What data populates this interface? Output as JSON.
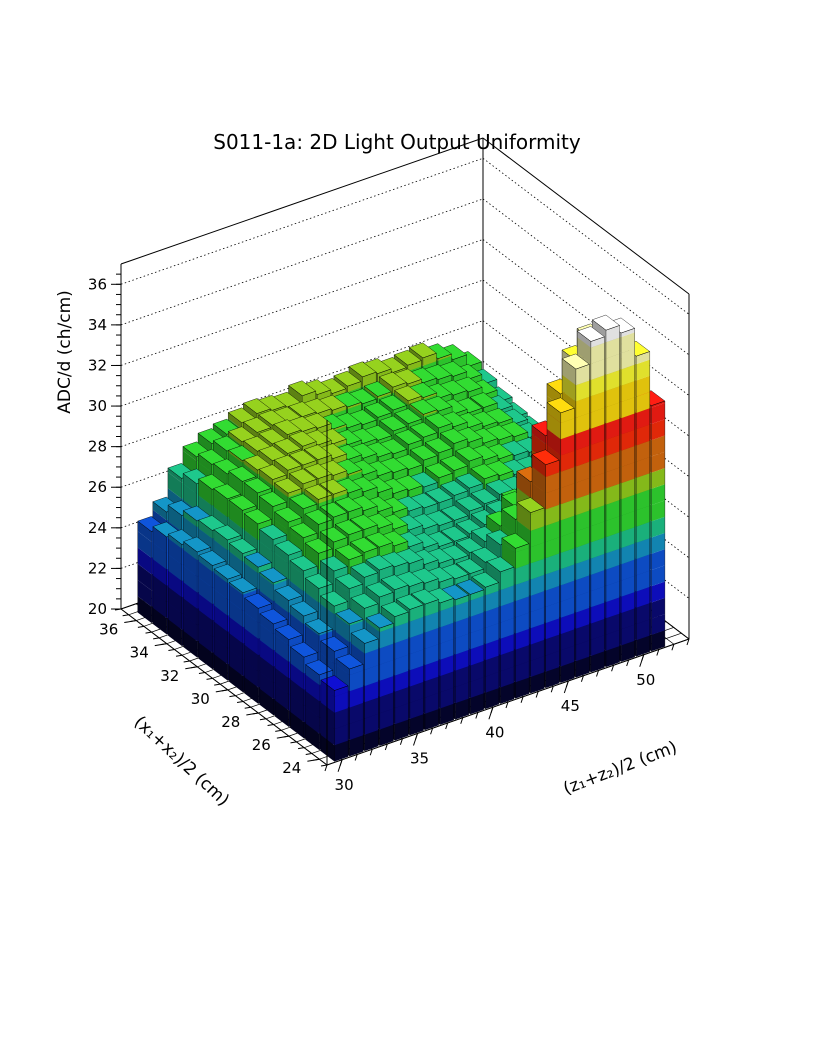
{
  "chart_data": {
    "type": "lego3d",
    "title": "S011-1a: 2D Light Output Uniformity",
    "xlabel": "(z₁+z₂)/2 (cm)",
    "ylabel": "(x₁+x₂)/2 (cm)",
    "zlabel": "ADC/d (ch/cm)",
    "xlim": [
      29,
      53
    ],
    "ylim": [
      23.5,
      37
    ],
    "zlim": [
      20,
      37
    ],
    "x_ticks": [
      30,
      35,
      40,
      45,
      50
    ],
    "y_ticks": [
      24,
      26,
      28,
      30,
      32,
      34,
      36
    ],
    "z_ticks": [
      20,
      22,
      24,
      26,
      28,
      30,
      32,
      34,
      36
    ],
    "grid": true,
    "colormap": [
      "#050530",
      "#0a0a78",
      "#0f0fd2",
      "#0f55dc",
      "#1496c8",
      "#1ec88c",
      "#32dc32",
      "#96d21e",
      "#dc6e0f",
      "#ff2d0a",
      "#ff1e14",
      "#ffdc0f",
      "#ffff32",
      "#ffffb4",
      "#ffffff"
    ],
    "bins": {
      "z_centers": [
        30,
        31,
        32,
        33,
        34,
        35,
        36,
        37,
        38,
        39,
        40,
        41,
        42,
        43,
        44,
        45,
        46,
        47,
        48,
        49,
        50,
        51
      ],
      "x_centers": [
        24,
        25,
        26,
        27,
        28,
        29,
        30,
        31,
        32,
        33,
        34,
        35,
        36
      ],
      "values_by_x": {
        "36": [
          24.5,
          25.2,
          26.6,
          27.4,
          27.8,
          28.0,
          28.3,
          28.5,
          28.4,
          28.3,
          28.6,
          28.4,
          28.2,
          28.3,
          28.5,
          28.4,
          28.2,
          28.3,
          28.4,
          28.1,
          27.8,
          27.2
        ],
        "35": [
          24.8,
          25.6,
          26.9,
          27.6,
          28.0,
          28.2,
          28.4,
          28.5,
          28.4,
          28.4,
          28.3,
          28.2,
          28.1,
          28.0,
          28.1,
          28.3,
          28.2,
          28.0,
          27.9,
          27.8,
          27.4,
          26.9
        ],
        "34": [
          25.0,
          25.9,
          27.2,
          27.7,
          28.1,
          28.3,
          28.4,
          28.6,
          28.5,
          28.4,
          28.1,
          27.9,
          27.8,
          27.9,
          28.0,
          28.2,
          28.1,
          27.8,
          27.7,
          27.6,
          27.2,
          26.6
        ],
        "33": [
          25.2,
          26.0,
          27.3,
          27.9,
          28.2,
          28.4,
          28.5,
          28.6,
          28.4,
          28.2,
          27.9,
          27.7,
          27.6,
          27.8,
          27.9,
          28.1,
          28.0,
          27.6,
          27.4,
          27.4,
          27.0,
          26.4
        ],
        "32": [
          25.1,
          26.1,
          27.3,
          27.9,
          28.3,
          28.5,
          28.5,
          28.5,
          28.3,
          28.0,
          27.8,
          27.6,
          27.5,
          27.7,
          27.8,
          28.0,
          27.8,
          27.5,
          27.3,
          27.2,
          26.9,
          26.3
        ],
        "31": [
          25.0,
          26.0,
          27.2,
          27.8,
          28.2,
          28.4,
          28.4,
          28.3,
          28.1,
          27.8,
          27.5,
          27.4,
          27.3,
          27.5,
          27.6,
          27.8,
          27.6,
          27.3,
          27.2,
          27.1,
          26.8,
          26.2
        ],
        "30": [
          24.9,
          25.9,
          27.0,
          27.6,
          28.0,
          28.2,
          28.2,
          28.0,
          27.8,
          27.5,
          27.2,
          27.1,
          27.0,
          27.2,
          27.3,
          27.5,
          27.3,
          27.1,
          27.0,
          26.9,
          26.6,
          26.0
        ],
        "29": [
          24.7,
          25.7,
          26.8,
          27.4,
          27.8,
          27.9,
          27.9,
          27.7,
          27.4,
          27.1,
          26.9,
          26.8,
          26.8,
          26.9,
          27.0,
          27.2,
          27.1,
          26.9,
          26.8,
          26.8,
          26.5,
          25.9
        ],
        "28": [
          24.5,
          25.4,
          26.6,
          27.2,
          27.5,
          27.6,
          27.6,
          27.4,
          27.1,
          26.8,
          26.6,
          26.5,
          26.5,
          26.7,
          26.8,
          27.0,
          26.9,
          26.8,
          26.7,
          26.6,
          26.3,
          25.7
        ],
        "27": [
          24.3,
          25.2,
          26.3,
          26.9,
          27.2,
          27.3,
          27.3,
          27.1,
          26.8,
          26.5,
          26.3,
          26.3,
          26.4,
          26.6,
          26.8,
          27.1,
          27.1,
          27.0,
          27.0,
          26.9,
          26.5,
          25.8
        ],
        "26": [
          24.0,
          24.9,
          26.0,
          26.6,
          26.9,
          27.0,
          26.9,
          26.8,
          26.5,
          26.3,
          26.2,
          26.3,
          26.6,
          27.1,
          27.8,
          28.6,
          29.5,
          30.3,
          30.8,
          30.6,
          29.4,
          27.6
        ],
        "25": [
          23.7,
          24.6,
          25.7,
          26.2,
          26.5,
          26.6,
          26.5,
          26.4,
          26.2,
          26.1,
          26.1,
          26.4,
          27.0,
          28.0,
          29.6,
          31.6,
          33.4,
          34.8,
          35.6,
          35.4,
          33.4,
          30.6
        ],
        "24": [
          23.5,
          24.3,
          25.3,
          25.8,
          26.1,
          26.2,
          26.2,
          26.0,
          25.9,
          25.9,
          26.0,
          26.5,
          27.4,
          28.9,
          31.0,
          33.3,
          35.2,
          36.3,
          36.6,
          36.2,
          34.8,
          32.1
        ]
      }
    }
  }
}
